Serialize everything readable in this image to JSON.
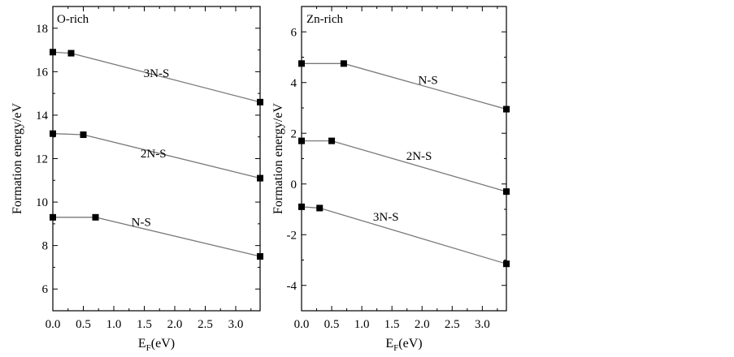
{
  "chart_data": [
    {
      "type": "line",
      "title": "O-rich",
      "xlabel_main": "E",
      "xlabel_sub": "F",
      "xlabel_tail": "(eV)",
      "ylabel": "Formation energy/eV",
      "xlim": [
        0,
        3.4
      ],
      "ylim": [
        5,
        19
      ],
      "xticks": [
        0.0,
        0.5,
        1.0,
        1.5,
        2.0,
        2.5,
        3.0
      ],
      "xtick_labels": [
        "0.0",
        "0.5",
        "1.0",
        "1.5",
        "2.0",
        "2.5",
        "3.0"
      ],
      "yticks": [
        6,
        8,
        10,
        12,
        14,
        16,
        18
      ],
      "ytick_labels": [
        "6",
        "8",
        "10",
        "12",
        "14",
        "16",
        "18"
      ],
      "grid": false,
      "series": [
        {
          "name": "3N-S",
          "x": [
            0.0,
            0.3,
            3.4
          ],
          "y": [
            16.9,
            16.85,
            14.6
          ],
          "label_at": [
            1.7,
            15.75
          ]
        },
        {
          "name": "2N-S",
          "x": [
            0.0,
            0.5,
            3.4
          ],
          "y": [
            13.15,
            13.1,
            11.1
          ],
          "label_at": [
            1.65,
            12.05
          ]
        },
        {
          "name": "N-S",
          "x": [
            0.0,
            0.7,
            3.4
          ],
          "y": [
            9.3,
            9.3,
            7.5
          ],
          "label_at": [
            1.45,
            8.9
          ]
        }
      ]
    },
    {
      "type": "line",
      "title": "Zn-rich",
      "xlabel_main": "E",
      "xlabel_sub": "F",
      "xlabel_tail": "(eV)",
      "ylabel": "Formation energy/eV",
      "xlim": [
        0,
        3.4
      ],
      "ylim": [
        -5,
        7
      ],
      "xticks": [
        0.0,
        0.5,
        1.0,
        1.5,
        2.0,
        2.5,
        3.0
      ],
      "xtick_labels": [
        "0.0",
        "0.5",
        "1.0",
        "1.5",
        "2.0",
        "2.5",
        "3.0"
      ],
      "yticks": [
        -4,
        -2,
        0,
        2,
        4,
        6
      ],
      "ytick_labels": [
        "-4",
        "-2",
        "0",
        "2",
        "4",
        "6"
      ],
      "grid": false,
      "series": [
        {
          "name": "N-S",
          "x": [
            0.0,
            0.7,
            3.4
          ],
          "y": [
            4.75,
            4.75,
            2.95
          ],
          "label_at": [
            2.1,
            3.95
          ]
        },
        {
          "name": "2N-S",
          "x": [
            0.0,
            0.5,
            3.4
          ],
          "y": [
            1.7,
            1.7,
            -0.3
          ],
          "label_at": [
            1.95,
            0.95
          ]
        },
        {
          "name": "3N-S",
          "x": [
            0.0,
            0.3,
            3.4
          ],
          "y": [
            -0.9,
            -0.95,
            -3.15
          ],
          "label_at": [
            1.4,
            -1.45
          ]
        }
      ]
    }
  ]
}
